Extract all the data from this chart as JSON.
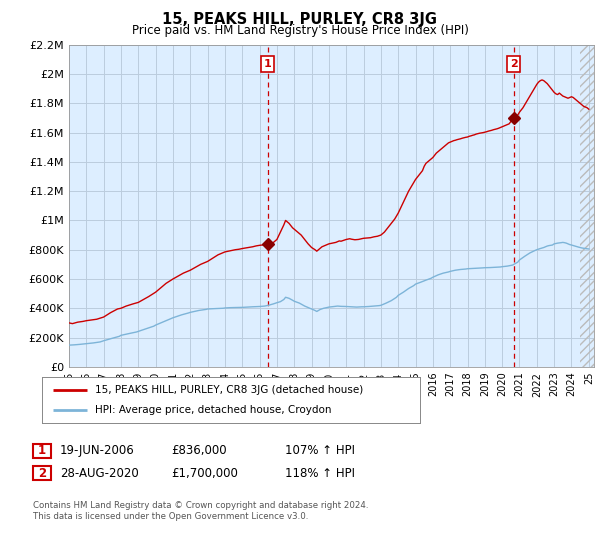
{
  "title": "15, PEAKS HILL, PURLEY, CR8 3JG",
  "subtitle": "Price paid vs. HM Land Registry's House Price Index (HPI)",
  "ylabel_ticks": [
    "£0",
    "£200K",
    "£400K",
    "£600K",
    "£800K",
    "£1M",
    "£1.2M",
    "£1.4M",
    "£1.6M",
    "£1.8M",
    "£2M",
    "£2.2M"
  ],
  "ylim": [
    0,
    2200000
  ],
  "ytick_values": [
    0,
    200000,
    400000,
    600000,
    800000,
    1000000,
    1200000,
    1400000,
    1600000,
    1800000,
    2000000,
    2200000
  ],
  "xlim_start": 1995.0,
  "xlim_end": 2025.3,
  "xtick_years": [
    1995,
    1996,
    1997,
    1998,
    1999,
    2000,
    2001,
    2002,
    2003,
    2004,
    2005,
    2006,
    2007,
    2008,
    2009,
    2010,
    2011,
    2012,
    2013,
    2014,
    2015,
    2016,
    2017,
    2018,
    2019,
    2020,
    2021,
    2022,
    2023,
    2024,
    2025
  ],
  "xtick_labels": [
    "95",
    "96",
    "97",
    "98",
    "99",
    "00",
    "01",
    "02",
    "03",
    "04",
    "05",
    "06",
    "07",
    "08",
    "09",
    "10",
    "11",
    "12",
    "13",
    "14",
    "2015",
    "2016",
    "2017",
    "2018",
    "2019",
    "2020",
    "2021",
    "2022",
    "2023",
    "2024",
    "25"
  ],
  "red_line_color": "#cc0000",
  "blue_line_color": "#7db4d8",
  "chart_bg_color": "#ddeeff",
  "marker1_x": 2006.47,
  "marker1_y": 836000,
  "marker2_x": 2020.66,
  "marker2_y": 1700000,
  "vline1_x": 2006.47,
  "vline2_x": 2020.66,
  "legend_label_red": "15, PEAKS HILL, PURLEY, CR8 3JG (detached house)",
  "legend_label_blue": "HPI: Average price, detached house, Croydon",
  "table_row1": [
    "1",
    "19-JUN-2006",
    "£836,000",
    "107% ↑ HPI"
  ],
  "table_row2": [
    "2",
    "28-AUG-2020",
    "£1,700,000",
    "118% ↑ HPI"
  ],
  "footer": "Contains HM Land Registry data © Crown copyright and database right 2024.\nThis data is licensed under the Open Government Licence v3.0.",
  "background_color": "#ffffff",
  "grid_color": "#bbccdd"
}
